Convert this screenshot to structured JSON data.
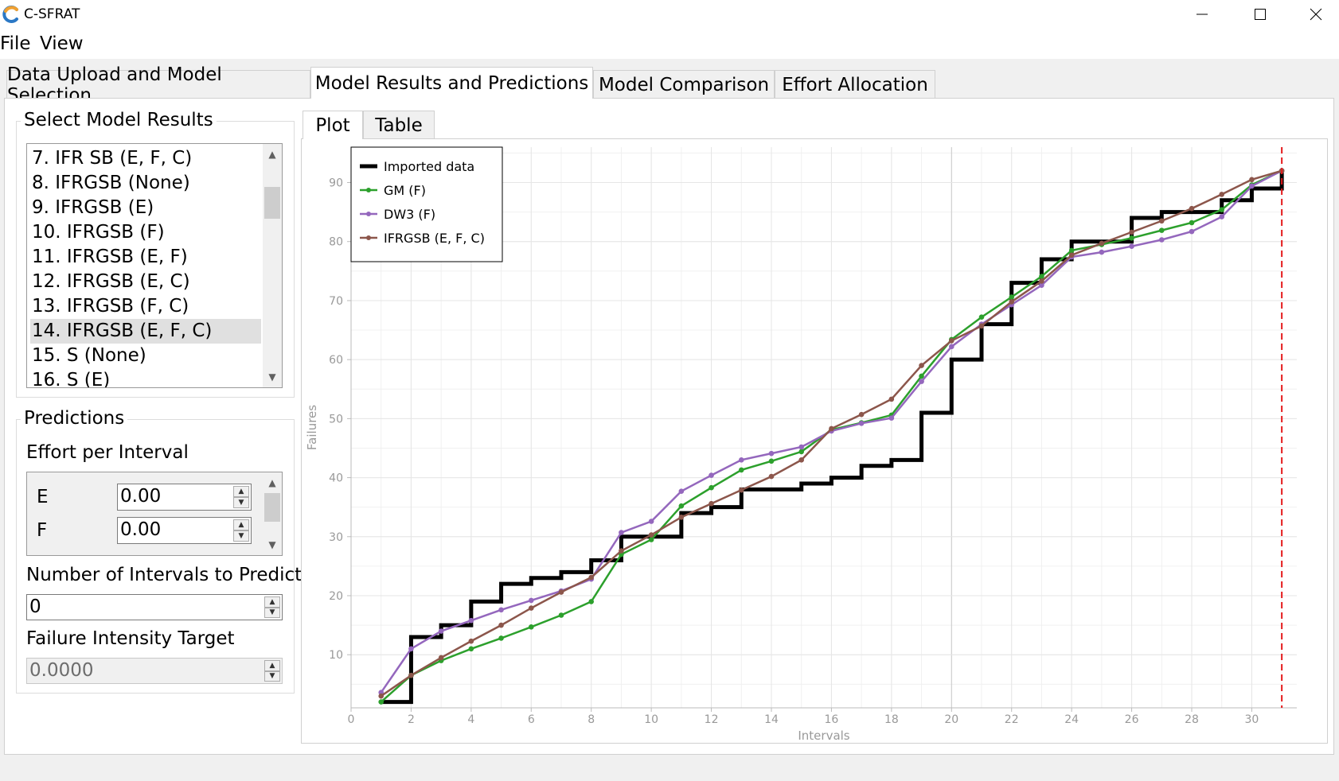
{
  "window": {
    "title": "C-SFRAT"
  },
  "menu": [
    "File",
    "View"
  ],
  "tabs": [
    "Data Upload and Model Selection",
    "Model Results and Predictions",
    "Model Comparison",
    "Effort Allocation"
  ],
  "select_model_results": {
    "title": "Select Model Results",
    "items": [
      "7. IFR SB (E, F, C)",
      "8. IFRGSB (None)",
      "9. IFRGSB (E)",
      "10. IFRGSB (F)",
      "11. IFRGSB (E, F)",
      "12. IFRGSB (E, C)",
      "13. IFRGSB (F, C)",
      "14. IFRGSB (E, F, C)",
      "15. S (None)",
      "16. S (E)"
    ],
    "selected_index": 7
  },
  "predictions": {
    "title": "Predictions",
    "effort_label": "Effort per Interval",
    "effort_rows": [
      {
        "name": "E",
        "value": "0.00"
      },
      {
        "name": "F",
        "value": "0.00"
      }
    ],
    "intervals_label": "Number of Intervals to Predict",
    "intervals_value": "0",
    "intensity_label": "Failure Intensity Target",
    "intensity_value": "0.0000"
  },
  "plot_tabs": [
    "Plot",
    "Table"
  ],
  "chart_data": {
    "type": "line",
    "xlabel": "Intervals",
    "ylabel": "Failures",
    "xlim": [
      0,
      31.5
    ],
    "ylim": [
      1,
      96
    ],
    "xticks": [
      0,
      2,
      4,
      6,
      8,
      10,
      12,
      14,
      16,
      18,
      20,
      22,
      24,
      26,
      28,
      30
    ],
    "yticks": [
      10,
      20,
      30,
      40,
      50,
      60,
      70,
      80,
      90
    ],
    "grid": true,
    "legend_position": "top-left",
    "marker_line_x": 31,
    "series": [
      {
        "name": "Imported data",
        "style": "step",
        "color": "#000000",
        "x": [
          1,
          2,
          3,
          4,
          5,
          6,
          7,
          8,
          9,
          10,
          11,
          12,
          13,
          14,
          15,
          16,
          17,
          18,
          19,
          20,
          21,
          22,
          23,
          24,
          25,
          26,
          27,
          28,
          29,
          30,
          31
        ],
        "y": [
          2,
          13,
          15,
          19,
          22,
          23,
          24,
          26,
          30,
          30,
          34,
          35,
          38,
          38,
          39,
          40,
          42,
          43,
          51,
          60,
          66,
          73,
          77,
          80,
          80,
          84,
          85,
          85,
          87,
          89,
          92
        ]
      },
      {
        "name": "GM (F)",
        "color": "#2ca02c",
        "x": [
          1,
          2,
          3,
          4,
          5,
          6,
          7,
          8,
          9,
          10,
          11,
          12,
          13,
          14,
          15,
          16,
          17,
          18,
          19,
          20,
          21,
          22,
          23,
          24,
          25,
          26,
          27,
          28,
          29,
          30,
          31
        ],
        "y": [
          2,
          6.5,
          9,
          11,
          12.8,
          14.7,
          16.7,
          19,
          27,
          29.5,
          35.2,
          38.3,
          41.3,
          42.8,
          44.4,
          48.1,
          49.3,
          50.6,
          57.2,
          63.4,
          67.2,
          70.6,
          74.1,
          78.5,
          79.5,
          80.6,
          81.9,
          83.2,
          85.4,
          89.6,
          92
        ]
      },
      {
        "name": "DW3 (F)",
        "color": "#9467bd",
        "x": [
          1,
          2,
          3,
          4,
          5,
          6,
          7,
          8,
          9,
          10,
          11,
          12,
          13,
          14,
          15,
          16,
          17,
          18,
          19,
          20,
          21,
          22,
          23,
          24,
          25,
          26,
          27,
          28,
          29,
          30,
          31
        ],
        "y": [
          3.6,
          11,
          14,
          15.8,
          17.6,
          19.2,
          20.8,
          22.8,
          30.7,
          32.6,
          37.7,
          40.4,
          43,
          44.1,
          45.2,
          47.9,
          49.2,
          50.1,
          56.3,
          62.2,
          66,
          69.3,
          72.6,
          77.4,
          78.2,
          79.2,
          80.3,
          81.7,
          84.2,
          89.4,
          92
        ]
      },
      {
        "name": "IFRGSB (E, F, C)",
        "color": "#8c564b",
        "x": [
          1,
          2,
          3,
          4,
          5,
          6,
          7,
          8,
          9,
          10,
          11,
          12,
          13,
          14,
          15,
          16,
          17,
          18,
          19,
          20,
          21,
          22,
          23,
          24,
          25,
          26,
          27,
          28,
          29,
          30,
          31
        ],
        "y": [
          3,
          6.5,
          9.5,
          12.3,
          15,
          17.9,
          20.6,
          23.1,
          27.6,
          30.3,
          33.3,
          35.6,
          37.9,
          40.2,
          43,
          48.3,
          50.7,
          53.3,
          59,
          63.2,
          65.7,
          69.8,
          73.3,
          77.7,
          79.7,
          81.6,
          83.5,
          85.6,
          88,
          90.5,
          92
        ]
      }
    ]
  }
}
